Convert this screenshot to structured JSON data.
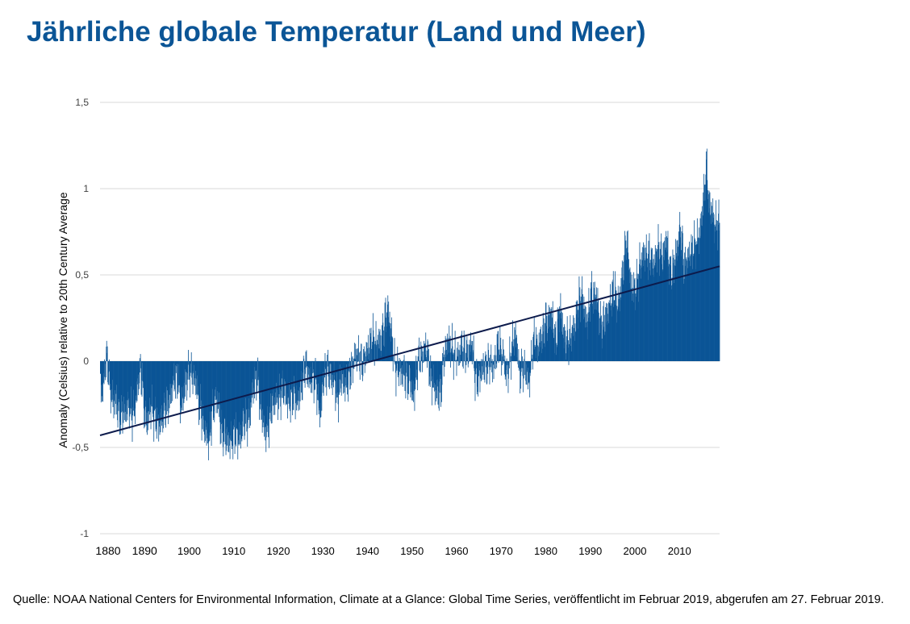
{
  "title": "Jährliche globale Temperatur (Land und Meer)",
  "source": "Quelle: NOAA National Centers for Environmental Information, Climate at a Glance: Global Time Series, veröffentlicht im Februar 2019, abgerufen am 27. Februar 2019.",
  "colors": {
    "title": "#0b5596",
    "bars": "#0b5596",
    "trend": "#0d1b4c",
    "grid": "#d9d9d9"
  },
  "chart_data": {
    "type": "bar",
    "ylabel": "Anomaly (Celsius) relative to 20th Century Average",
    "xlabel": "",
    "xlim": [
      "1880-01",
      "2018-12"
    ],
    "ylim": [
      -1,
      1.5
    ],
    "y_ticks": [
      "1,5",
      "1",
      "0,5",
      "0",
      "-0,5",
      "-1"
    ],
    "y_tick_values": [
      1.5,
      1,
      0.5,
      0,
      -0.5,
      -1
    ],
    "x_ticks": [
      "1880",
      "1890",
      "1900",
      "1910",
      "1920",
      "1930",
      "1940",
      "1950",
      "1960",
      "1970",
      "1980",
      "1990",
      "2000",
      "2010"
    ],
    "grid": true,
    "legend": "none",
    "series": [
      {
        "resolution": "monthly anomalies (values estimated from the figure; sampled at roughly semi-annual points and interpolated for rendering)",
        "points": [
          [
            "1880.0",
            -0.12
          ],
          [
            "1880.5",
            -0.2
          ],
          [
            "1881.0",
            -0.05
          ],
          [
            "1881.5",
            0.04
          ],
          [
            "1882.0",
            -0.12
          ],
          [
            "1882.5",
            -0.2
          ],
          [
            "1883.0",
            -0.25
          ],
          [
            "1883.5",
            -0.22
          ],
          [
            "1884.0",
            -0.3
          ],
          [
            "1884.5",
            -0.33
          ],
          [
            "1885.0",
            -0.3
          ],
          [
            "1885.5",
            -0.3
          ],
          [
            "1886.0",
            -0.28
          ],
          [
            "1886.5",
            -0.26
          ],
          [
            "1887.0",
            -0.32
          ],
          [
            "1887.5",
            -0.3
          ],
          [
            "1888.0",
            -0.24
          ],
          [
            "1888.5",
            -0.12
          ],
          [
            "1889.0",
            -0.05
          ],
          [
            "1889.5",
            -0.14
          ],
          [
            "1890.0",
            -0.32
          ],
          [
            "1890.5",
            -0.36
          ],
          [
            "1891.0",
            -0.3
          ],
          [
            "1891.5",
            -0.26
          ],
          [
            "1892.0",
            -0.32
          ],
          [
            "1892.5",
            -0.34
          ],
          [
            "1893.0",
            -0.38
          ],
          [
            "1893.5",
            -0.36
          ],
          [
            "1894.0",
            -0.32
          ],
          [
            "1894.5",
            -0.28
          ],
          [
            "1895.0",
            -0.26
          ],
          [
            "1895.5",
            -0.24
          ],
          [
            "1896.0",
            -0.16
          ],
          [
            "1896.5",
            -0.12
          ],
          [
            "1897.0",
            -0.1
          ],
          [
            "1897.5",
            -0.12
          ],
          [
            "1898.0",
            -0.26
          ],
          [
            "1898.5",
            -0.24
          ],
          [
            "1899.0",
            -0.14
          ],
          [
            "1899.5",
            -0.1
          ],
          [
            "1900.0",
            -0.06
          ],
          [
            "1900.5",
            -0.08
          ],
          [
            "1901.0",
            -0.1
          ],
          [
            "1901.5",
            -0.12
          ],
          [
            "1902.0",
            -0.24
          ],
          [
            "1902.5",
            -0.28
          ],
          [
            "1903.0",
            -0.36
          ],
          [
            "1903.5",
            -0.4
          ],
          [
            "1904.0",
            -0.45
          ],
          [
            "1904.5",
            -0.46
          ],
          [
            "1905.0",
            -0.32
          ],
          [
            "1905.5",
            -0.26
          ],
          [
            "1906.0",
            -0.22
          ],
          [
            "1906.5",
            -0.24
          ],
          [
            "1907.0",
            -0.4
          ],
          [
            "1907.5",
            -0.42
          ],
          [
            "1908.0",
            -0.44
          ],
          [
            "1908.5",
            -0.46
          ],
          [
            "1909.0",
            -0.48
          ],
          [
            "1909.5",
            -0.46
          ],
          [
            "1910.0",
            -0.44
          ],
          [
            "1910.5",
            -0.42
          ],
          [
            "1911.0",
            -0.46
          ],
          [
            "1911.5",
            -0.44
          ],
          [
            "1912.0",
            -0.36
          ],
          [
            "1912.5",
            -0.34
          ],
          [
            "1913.0",
            -0.36
          ],
          [
            "1913.5",
            -0.32
          ],
          [
            "1914.0",
            -0.2
          ],
          [
            "1914.5",
            -0.15
          ],
          [
            "1915.0",
            -0.1
          ],
          [
            "1915.5",
            -0.14
          ],
          [
            "1916.0",
            -0.3
          ],
          [
            "1916.5",
            -0.34
          ],
          [
            "1917.0",
            -0.42
          ],
          [
            "1917.5",
            -0.4
          ],
          [
            "1918.0",
            -0.34
          ],
          [
            "1918.5",
            -0.26
          ],
          [
            "1919.0",
            -0.24
          ],
          [
            "1919.5",
            -0.22
          ],
          [
            "1920.0",
            -0.22
          ],
          [
            "1920.5",
            -0.2
          ],
          [
            "1921.0",
            -0.16
          ],
          [
            "1921.5",
            -0.18
          ],
          [
            "1922.0",
            -0.24
          ],
          [
            "1922.5",
            -0.24
          ],
          [
            "1923.0",
            -0.22
          ],
          [
            "1923.5",
            -0.2
          ],
          [
            "1924.0",
            -0.24
          ],
          [
            "1924.5",
            -0.22
          ],
          [
            "1925.0",
            -0.16
          ],
          [
            "1925.5",
            -0.1
          ],
          [
            "1926.0",
            -0.02
          ],
          [
            "1926.5",
            -0.06
          ],
          [
            "1927.0",
            -0.12
          ],
          [
            "1927.5",
            -0.1
          ],
          [
            "1928.0",
            -0.12
          ],
          [
            "1928.5",
            -0.14
          ],
          [
            "1929.0",
            -0.28
          ],
          [
            "1929.5",
            -0.3
          ],
          [
            "1930.0",
            -0.1
          ],
          [
            "1930.5",
            -0.08
          ],
          [
            "1931.0",
            -0.05
          ],
          [
            "1931.5",
            -0.07
          ],
          [
            "1932.0",
            -0.12
          ],
          [
            "1932.5",
            -0.1
          ],
          [
            "1933.0",
            -0.22
          ],
          [
            "1933.5",
            -0.2
          ],
          [
            "1934.0",
            -0.1
          ],
          [
            "1934.5",
            -0.12
          ],
          [
            "1935.0",
            -0.15
          ],
          [
            "1935.5",
            -0.12
          ],
          [
            "1936.0",
            -0.08
          ],
          [
            "1936.5",
            -0.04
          ],
          [
            "1937.0",
            0.02
          ],
          [
            "1937.5",
            0.04
          ],
          [
            "1938.0",
            0.03
          ],
          [
            "1938.5",
            0.0
          ],
          [
            "1939.0",
            -0.02
          ],
          [
            "1939.5",
            0.04
          ],
          [
            "1940.0",
            0.06
          ],
          [
            "1940.5",
            0.1
          ],
          [
            "1941.0",
            0.14
          ],
          [
            "1941.5",
            0.12
          ],
          [
            "1942.0",
            0.1
          ],
          [
            "1942.5",
            0.12
          ],
          [
            "1943.0",
            0.12
          ],
          [
            "1943.5",
            0.18
          ],
          [
            "1944.0",
            0.26
          ],
          [
            "1944.5",
            0.3
          ],
          [
            "1945.0",
            0.22
          ],
          [
            "1945.5",
            0.12
          ],
          [
            "1946.0",
            -0.02
          ],
          [
            "1946.5",
            -0.06
          ],
          [
            "1947.0",
            -0.04
          ],
          [
            "1947.5",
            -0.08
          ],
          [
            "1948.0",
            -0.06
          ],
          [
            "1948.5",
            -0.1
          ],
          [
            "1949.0",
            -0.12
          ],
          [
            "1949.5",
            -0.1
          ],
          [
            "1950.0",
            -0.2
          ],
          [
            "1950.5",
            -0.18
          ],
          [
            "1951.0",
            -0.06
          ],
          [
            "1951.5",
            0.02
          ],
          [
            "1952.0",
            0.02
          ],
          [
            "1952.5",
            0.04
          ],
          [
            "1953.0",
            0.08
          ],
          [
            "1953.5",
            0.04
          ],
          [
            "1954.0",
            -0.1
          ],
          [
            "1954.5",
            -0.12
          ],
          [
            "1955.0",
            -0.16
          ],
          [
            "1955.5",
            -0.18
          ],
          [
            "1956.0",
            -0.2
          ],
          [
            "1956.5",
            -0.16
          ],
          [
            "1957.0",
            0.02
          ],
          [
            "1957.5",
            0.06
          ],
          [
            "1958.0",
            0.12
          ],
          [
            "1958.5",
            0.1
          ],
          [
            "1959.0",
            0.06
          ],
          [
            "1959.5",
            0.04
          ],
          [
            "1960.0",
            0.02
          ],
          [
            "1960.5",
            0.04
          ],
          [
            "1961.0",
            0.08
          ],
          [
            "1961.5",
            0.06
          ],
          [
            "1962.0",
            0.05
          ],
          [
            "1962.5",
            0.04
          ],
          [
            "1963.0",
            0.08
          ],
          [
            "1963.5",
            0.1
          ],
          [
            "1964.0",
            -0.08
          ],
          [
            "1964.5",
            -0.12
          ],
          [
            "1965.0",
            -0.1
          ],
          [
            "1965.5",
            -0.06
          ],
          [
            "1966.0",
            -0.03
          ],
          [
            "1966.5",
            -0.04
          ],
          [
            "1967.0",
            -0.02
          ],
          [
            "1967.5",
            0.0
          ],
          [
            "1968.0",
            -0.04
          ],
          [
            "1968.5",
            -0.02
          ],
          [
            "1969.0",
            0.08
          ],
          [
            "1969.5",
            0.1
          ],
          [
            "1970.0",
            0.04
          ],
          [
            "1970.5",
            0.02
          ],
          [
            "1971.0",
            -0.08
          ],
          [
            "1971.5",
            -0.06
          ],
          [
            "1972.0",
            0.02
          ],
          [
            "1972.5",
            0.1
          ],
          [
            "1973.0",
            0.16
          ],
          [
            "1973.5",
            0.1
          ],
          [
            "1974.0",
            -0.08
          ],
          [
            "1974.5",
            -0.06
          ],
          [
            "1975.0",
            -0.04
          ],
          [
            "1975.5",
            -0.06
          ],
          [
            "1976.0",
            -0.12
          ],
          [
            "1976.5",
            -0.08
          ],
          [
            "1977.0",
            0.1
          ],
          [
            "1977.5",
            0.14
          ],
          [
            "1978.0",
            0.08
          ],
          [
            "1978.5",
            0.1
          ],
          [
            "1979.0",
            0.14
          ],
          [
            "1979.5",
            0.18
          ],
          [
            "1980.0",
            0.24
          ],
          [
            "1980.5",
            0.22
          ],
          [
            "1981.0",
            0.28
          ],
          [
            "1981.5",
            0.24
          ],
          [
            "1982.0",
            0.12
          ],
          [
            "1982.5",
            0.16
          ],
          [
            "1983.0",
            0.32
          ],
          [
            "1983.5",
            0.26
          ],
          [
            "1984.0",
            0.14
          ],
          [
            "1984.5",
            0.12
          ],
          [
            "1985.0",
            0.12
          ],
          [
            "1985.5",
            0.14
          ],
          [
            "1986.0",
            0.18
          ],
          [
            "1986.5",
            0.2
          ],
          [
            "1987.0",
            0.3
          ],
          [
            "1987.5",
            0.36
          ],
          [
            "1988.0",
            0.38
          ],
          [
            "1988.5",
            0.32
          ],
          [
            "1989.0",
            0.22
          ],
          [
            "1989.5",
            0.26
          ],
          [
            "1990.0",
            0.4
          ],
          [
            "1990.5",
            0.38
          ],
          [
            "1991.0",
            0.38
          ],
          [
            "1991.5",
            0.36
          ],
          [
            "1992.0",
            0.24
          ],
          [
            "1992.5",
            0.2
          ],
          [
            "1993.0",
            0.24
          ],
          [
            "1993.5",
            0.26
          ],
          [
            "1994.0",
            0.3
          ],
          [
            "1994.5",
            0.34
          ],
          [
            "1995.0",
            0.42
          ],
          [
            "1995.5",
            0.4
          ],
          [
            "1996.0",
            0.32
          ],
          [
            "1996.5",
            0.36
          ],
          [
            "1997.0",
            0.48
          ],
          [
            "1997.5",
            0.58
          ],
          [
            "1998.0",
            0.72
          ],
          [
            "1998.5",
            0.6
          ],
          [
            "1999.0",
            0.44
          ],
          [
            "1999.5",
            0.42
          ],
          [
            "2000.0",
            0.42
          ],
          [
            "2000.5",
            0.46
          ],
          [
            "2001.0",
            0.56
          ],
          [
            "2001.5",
            0.58
          ],
          [
            "2002.0",
            0.64
          ],
          [
            "2002.5",
            0.6
          ],
          [
            "2003.0",
            0.62
          ],
          [
            "2003.5",
            0.6
          ],
          [
            "2004.0",
            0.56
          ],
          [
            "2004.5",
            0.58
          ],
          [
            "2005.0",
            0.66
          ],
          [
            "2005.5",
            0.64
          ],
          [
            "2006.0",
            0.6
          ],
          [
            "2006.5",
            0.64
          ],
          [
            "2007.0",
            0.72
          ],
          [
            "2007.5",
            0.6
          ],
          [
            "2008.0",
            0.5
          ],
          [
            "2008.5",
            0.54
          ],
          [
            "2009.0",
            0.6
          ],
          [
            "2009.5",
            0.66
          ],
          [
            "2010.0",
            0.76
          ],
          [
            "2010.5",
            0.7
          ],
          [
            "2011.0",
            0.54
          ],
          [
            "2011.5",
            0.58
          ],
          [
            "2012.0",
            0.6
          ],
          [
            "2012.5",
            0.64
          ],
          [
            "2013.0",
            0.66
          ],
          [
            "2013.5",
            0.68
          ],
          [
            "2014.0",
            0.7
          ],
          [
            "2014.5",
            0.74
          ],
          [
            "2015.0",
            0.86
          ],
          [
            "2015.5",
            0.98
          ],
          [
            "2016.0",
            1.15
          ],
          [
            "2016.5",
            0.92
          ],
          [
            "2017.0",
            0.88
          ],
          [
            "2017.5",
            0.84
          ],
          [
            "2018.0",
            0.78
          ],
          [
            "2018.5",
            0.8
          ],
          [
            "2018.95",
            0.8
          ]
        ]
      }
    ],
    "trend_line": {
      "start": [
        "1880-01",
        -0.43
      ],
      "end": [
        "2018-12",
        0.55
      ]
    }
  }
}
